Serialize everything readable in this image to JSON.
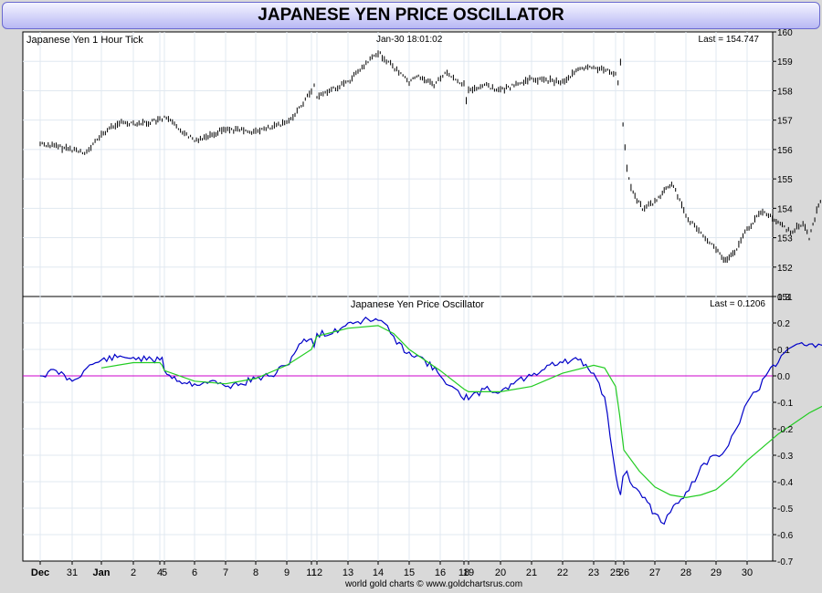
{
  "title": "JAPANESE YEN PRICE OSCILLATOR",
  "footer": "world gold charts © www.goldchartsrus.com",
  "x_ticks": [
    "Dec",
    "31",
    "Jan",
    "2",
    "4",
    "5",
    "6",
    "7",
    "8",
    "9",
    "11",
    "12",
    "13",
    "14",
    "15",
    "16",
    "18",
    "19",
    "20",
    "21",
    "22",
    "23",
    "25",
    "26",
    "27",
    "28",
    "29",
    "30"
  ],
  "chart_data": [
    {
      "type": "line",
      "panel": "price",
      "title": "Japanese Yen 1 Hour Tick",
      "timestamp": "Jan-30  18:01:02",
      "last_label": "Last = 154.747",
      "ylim": [
        151,
        160
      ],
      "y_ticks": [
        "151",
        "152",
        "153",
        "154",
        "155",
        "156",
        "157",
        "158",
        "159",
        "160"
      ],
      "series": [
        {
          "name": "Japanese Yen 1 Hour Tick",
          "x": [
            0,
            1,
            1.5,
            2,
            2.5,
            3,
            3.5,
            4,
            4.5,
            5,
            6,
            6.5,
            7,
            8,
            9,
            9.5,
            10,
            10.5,
            11,
            12,
            13,
            13.2,
            13.6,
            14,
            14.3,
            14.8,
            15.2,
            16,
            16.5,
            17,
            17.5,
            18,
            18.5,
            19,
            20,
            20.5,
            21,
            22,
            22.3,
            22.6,
            22.9,
            23.1,
            23.3,
            23.6,
            24,
            24.3,
            24.6,
            25,
            25.5,
            26,
            26.3,
            26.6,
            27,
            27.5,
            28,
            28.4,
            28.8,
            29,
            29.3,
            29.8
          ],
          "values": [
            156.2,
            156.0,
            155.9,
            156.5,
            156.9,
            156.9,
            156.9,
            157.0,
            157.0,
            157.1,
            156.3,
            156.5,
            156.7,
            156.6,
            156.9,
            157.4,
            158.0,
            158.2,
            157.8,
            158.3,
            159.3,
            159.1,
            158.7,
            158.3,
            158.5,
            158.2,
            158.6,
            158.2,
            157.7,
            158.0,
            158.2,
            158.0,
            158.2,
            158.4,
            158.3,
            158.7,
            158.8,
            158.6,
            158.3,
            159.0,
            156.9,
            155.3,
            154.5,
            154.0,
            154.2,
            154.6,
            154.8,
            153.7,
            153.2,
            152.6,
            152.2,
            152.5,
            153.3,
            153.9,
            153.5,
            153.2,
            153.5,
            153.0,
            154.1,
            154.8
          ]
        }
      ]
    },
    {
      "type": "line",
      "panel": "oscillator",
      "title": "Japanese Yen Price Oscillator",
      "last_label": "Last = 0.1206",
      "ylim": [
        -0.7,
        0.3
      ],
      "y_ticks": [
        "-0.7",
        "-0.6",
        "-0.5",
        "-0.4",
        "-0.3",
        "-0.2",
        "-0.1",
        "0.0",
        "0.1",
        "0.2",
        "0.3"
      ],
      "zero_line": 0,
      "series": [
        {
          "name": "oscillator",
          "color": "#0000c8",
          "x": [
            0,
            0.5,
            1,
            1.5,
            2,
            2.5,
            3,
            3.5,
            4,
            4.5,
            5,
            5.5,
            6,
            6.5,
            7,
            7.5,
            8,
            8.5,
            9,
            9.5,
            10,
            10.5,
            11,
            11.5,
            12,
            12.5,
            13,
            13.3,
            13.6,
            14,
            14.5,
            15,
            15.5,
            16,
            16.5,
            17,
            17.5,
            18,
            18.5,
            19,
            19.5,
            20,
            20.5,
            21,
            21.5,
            22,
            22.3,
            22.6,
            22.9,
            23.1,
            23.3,
            23.6,
            24,
            24.3,
            24.6,
            25,
            25.3,
            25.6,
            26,
            26.3,
            26.6,
            27,
            27.3,
            27.6,
            28,
            28.3,
            28.6,
            29,
            29.3,
            29.6,
            29.9
          ],
          "values": [
            0.0,
            0.02,
            -0.02,
            0.03,
            0.06,
            0.07,
            0.07,
            0.06,
            0.06,
            0.07,
            0.02,
            -0.02,
            -0.03,
            -0.02,
            -0.04,
            -0.03,
            -0.01,
            0.0,
            0.04,
            0.12,
            0.14,
            0.11,
            0.16,
            0.16,
            0.2,
            0.21,
            0.21,
            0.19,
            0.12,
            0.09,
            0.06,
            0.0,
            -0.04,
            -0.09,
            -0.07,
            -0.09,
            -0.05,
            -0.06,
            -0.02,
            0.0,
            0.04,
            0.05,
            0.06,
            0.01,
            -0.08,
            -0.37,
            -0.42,
            -0.45,
            -0.38,
            -0.36,
            -0.42,
            -0.46,
            -0.52,
            -0.56,
            -0.49,
            -0.44,
            -0.4,
            -0.33,
            -0.3,
            -0.28,
            -0.21,
            -0.1,
            -0.06,
            0.0,
            0.05,
            0.1,
            0.12,
            0.12,
            0.12,
            0.12,
            0.12
          ]
        },
        {
          "name": "signal",
          "color": "#22cc22",
          "x": [
            2,
            3,
            4,
            4.5,
            5,
            6,
            7,
            8,
            9,
            10,
            11,
            12,
            13,
            13.5,
            14,
            15,
            16,
            17,
            18,
            19,
            20,
            21,
            21.5,
            22,
            22.5,
            23,
            23.5,
            24,
            24.5,
            25,
            25.5,
            26,
            26.5,
            27,
            27.5,
            28,
            28.5,
            29,
            29.5,
            29.9
          ],
          "values": [
            0.03,
            0.05,
            0.05,
            0.04,
            0.02,
            -0.02,
            -0.03,
            -0.01,
            0.04,
            0.1,
            0.15,
            0.18,
            0.19,
            0.16,
            0.1,
            0.02,
            -0.05,
            -0.06,
            -0.06,
            -0.04,
            0.01,
            0.04,
            0.03,
            -0.04,
            -0.15,
            -0.28,
            -0.36,
            -0.42,
            -0.45,
            -0.46,
            -0.45,
            -0.43,
            -0.38,
            -0.32,
            -0.27,
            -0.22,
            -0.18,
            -0.14,
            -0.11,
            -0.1
          ]
        }
      ]
    }
  ]
}
